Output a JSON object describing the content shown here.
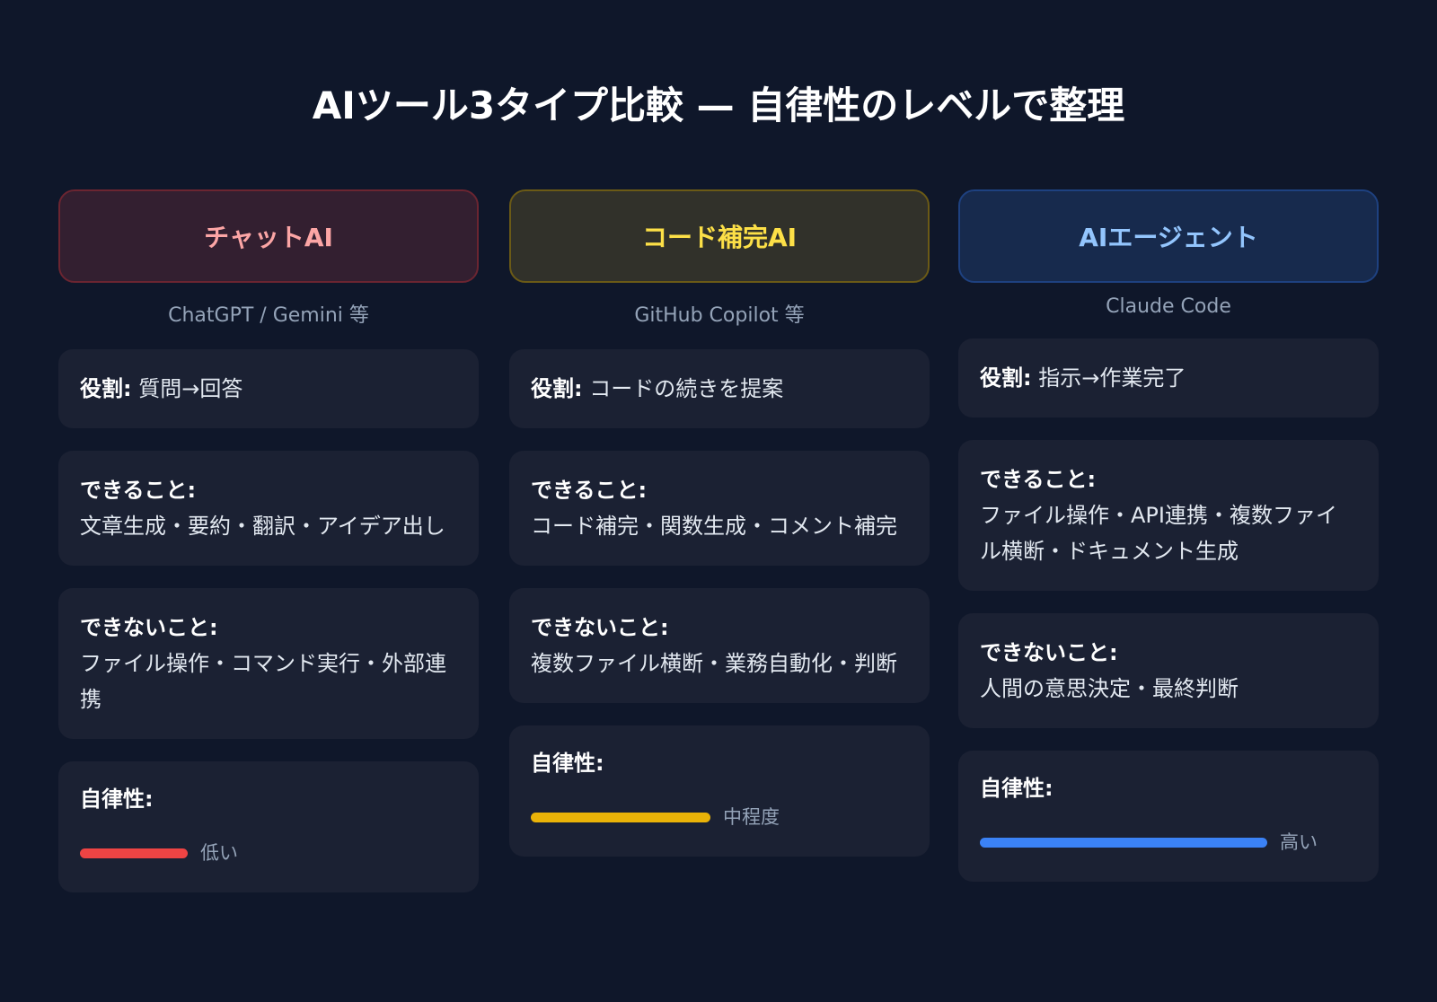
{
  "title": "AIツール3タイプ比較 — 自律性のレベルで整理",
  "labels": {
    "role": "役割:",
    "can": "できること:",
    "cannot": "できないこと:",
    "autonomy": "自律性:"
  },
  "columns": [
    {
      "name": "チャットAI",
      "examples": "ChatGPT / Gemini 等",
      "role": "質問→回答",
      "can": "文章生成・要約・翻訳・アイデア出し",
      "cannot": "ファイル操作・コマンド実行・外部連携",
      "autonomy_label": "低い",
      "autonomy_level": 0.375,
      "color": "#ef4444",
      "text_color": "#fca5a5",
      "bg": "#331f30",
      "border": "#6b2531"
    },
    {
      "name": "コード補完AI",
      "examples": "GitHub Copilot 等",
      "role": "コードの続きを提案",
      "can": "コード補完・関数生成・コメント補完",
      "cannot": "複数ファイル横断・業務自動化・判断",
      "autonomy_label": "中程度",
      "autonomy_level": 0.625,
      "color": "#eab308",
      "text_color": "#fde047",
      "bg": "#31312a",
      "border": "#6b5a16"
    },
    {
      "name": "AIエージェント",
      "examples": "Claude Code",
      "role": "指示→作業完了",
      "can": "ファイル操作・API連携・複数ファイル横断・ドキュメント生成",
      "cannot": "人間の意思決定・最終判断",
      "autonomy_label": "高い",
      "autonomy_level": 1.0,
      "color": "#3b82f6",
      "text_color": "#93c5fd",
      "bg": "#172a4d",
      "border": "#1e4180"
    }
  ]
}
